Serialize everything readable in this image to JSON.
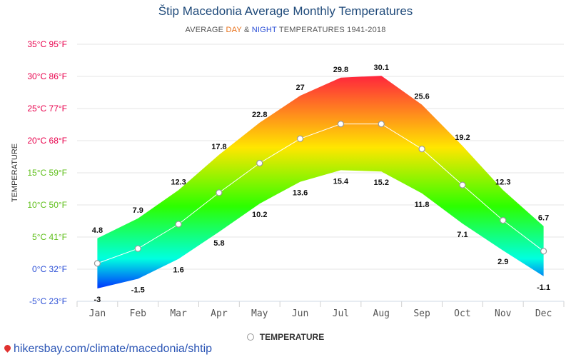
{
  "title": "Štip Macedonia Average Monthly Temperatures",
  "subtitle": {
    "prefix": "AVERAGE ",
    "day": "DAY",
    "amp": " & ",
    "night": "NIGHT",
    "suffix": " TEMPERATURES 1941-2018"
  },
  "legend": {
    "label": "TEMPERATURE"
  },
  "footer": {
    "text": "hikersbay.com/climate/macedonia/shtip"
  },
  "colors": {
    "day_label": "#e8711a",
    "night_label": "#2b4fd6",
    "band_hot": "#ff1a40",
    "band_warm": "#ffe600",
    "band_mild": "#2cff00",
    "band_cool": "#00ffe0",
    "band_cold": "#0030ff"
  },
  "chart_data": {
    "type": "area",
    "categories": [
      "Jan",
      "Feb",
      "Mar",
      "Apr",
      "May",
      "Jun",
      "Jul",
      "Aug",
      "Sep",
      "Oct",
      "Nov",
      "Dec"
    ],
    "series": [
      {
        "name": "DAY",
        "values": [
          4.8,
          7.9,
          12.3,
          17.8,
          22.8,
          27,
          29.8,
          30.1,
          25.6,
          19.2,
          12.3,
          6.7
        ]
      },
      {
        "name": "NIGHT",
        "values": [
          -3,
          -1.5,
          1.6,
          5.8,
          10.2,
          13.6,
          15.4,
          15.2,
          11.8,
          7.1,
          2.9,
          -1.1
        ]
      },
      {
        "name": "TEMPERATURE",
        "values": [
          0.9,
          3.2,
          7.0,
          11.9,
          16.5,
          20.3,
          22.6,
          22.6,
          18.7,
          13.1,
          7.6,
          2.8
        ]
      }
    ],
    "day_labels": [
      "4.8",
      "7.9",
      "12.3",
      "17.8",
      "22.8",
      "27",
      "29.8",
      "30.1",
      "25.6",
      "19.2",
      "12.3",
      "6.7"
    ],
    "night_labels": [
      "-3",
      "-1.5",
      "1.6",
      "5.8",
      "10.2",
      "13.6",
      "15.4",
      "15.2",
      "11.8",
      "7.1",
      "2.9",
      "-1.1"
    ],
    "ylabel": "TEMPERATURE",
    "ylim": [
      -5,
      35
    ],
    "yticks": [
      35,
      30,
      25,
      20,
      15,
      10,
      5,
      0,
      -5
    ],
    "ytick_labels": [
      "35°C 95°F",
      "30°C 86°F",
      "25°C 77°F",
      "20°C 68°F",
      "15°C 59°F",
      "10°C 50°F",
      "5°C 41°F",
      "0°C 32°F",
      "-5°C 23°F"
    ],
    "ytick_colors": [
      "#e8004c",
      "#e8004c",
      "#e8004c",
      "#e8004c",
      "#5fbf1a",
      "#5fbf1a",
      "#5fbf1a",
      "#2b4fd6",
      "#2b4fd6"
    ],
    "grid": true,
    "legend_position": "bottom-center"
  }
}
